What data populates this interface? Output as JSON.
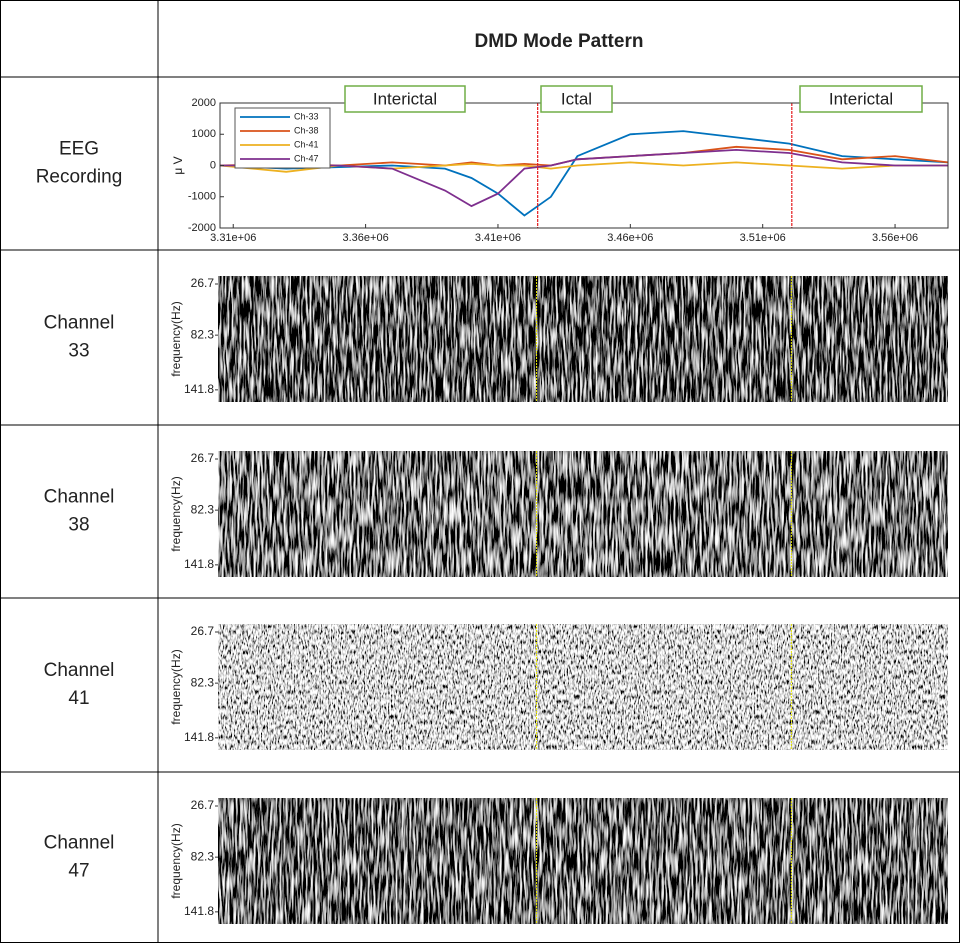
{
  "header": {
    "title": "DMD Mode Pattern"
  },
  "rows": [
    {
      "label_lines": [
        "EEG",
        "Recording"
      ]
    },
    {
      "label_lines": [
        "Channel",
        "33"
      ]
    },
    {
      "label_lines": [
        "Channel",
        "38"
      ]
    },
    {
      "label_lines": [
        "Channel",
        "41"
      ]
    },
    {
      "label_lines": [
        "Channel",
        "47"
      ]
    }
  ],
  "chart_data": [
    {
      "type": "line",
      "ylabel": "μ V",
      "annotations": [
        "Interictal",
        "Ictal",
        "Interictal"
      ],
      "xlim": [
        3305000,
        3580000
      ],
      "ylim": [
        -2000,
        2000
      ],
      "xticks": [
        {
          "value": 3310000,
          "label": "3.31e+06"
        },
        {
          "value": 3360000,
          "label": "3.36e+06"
        },
        {
          "value": 3410000,
          "label": "3.41e+06"
        },
        {
          "value": 3460000,
          "label": "3.46e+06"
        },
        {
          "value": 3510000,
          "label": "3.51e+06"
        },
        {
          "value": 3560000,
          "label": "3.56e+06"
        }
      ],
      "yticks": [
        -2000,
        -1000,
        0,
        1000,
        2000
      ],
      "event_x": [
        3425000,
        3521000
      ],
      "event_color": "#e41a1c",
      "x": [
        3305000,
        3330000,
        3350000,
        3370000,
        3390000,
        3400000,
        3410000,
        3420000,
        3430000,
        3440000,
        3460000,
        3480000,
        3500000,
        3520000,
        3540000,
        3560000,
        3580000
      ],
      "series": [
        {
          "name": "Ch-33",
          "color": "#0072bd",
          "values": [
            0,
            -100,
            -50,
            0,
            -100,
            -400,
            -900,
            -1600,
            -1000,
            300,
            1000,
            1100,
            900,
            700,
            300,
            200,
            100
          ]
        },
        {
          "name": "Ch-38",
          "color": "#d95319",
          "values": [
            0,
            50,
            0,
            100,
            0,
            100,
            0,
            50,
            0,
            200,
            300,
            400,
            600,
            500,
            200,
            300,
            100
          ]
        },
        {
          "name": "Ch-41",
          "color": "#edb120",
          "values": [
            0,
            -200,
            0,
            -100,
            0,
            50,
            0,
            0,
            -100,
            0,
            100,
            0,
            100,
            0,
            -100,
            0,
            0
          ]
        },
        {
          "name": "Ch-47",
          "color": "#7e2f8e",
          "values": [
            0,
            0,
            0,
            -100,
            -800,
            -1300,
            -900,
            -100,
            0,
            200,
            300,
            400,
            500,
            400,
            100,
            0,
            0
          ]
        }
      ]
    },
    {
      "type": "spectrogram",
      "ylabel": "frequency(Hz)",
      "xlim": [
        3305000,
        3580000
      ],
      "ylim": [
        18,
        155
      ],
      "yticks": [
        26.7,
        82.3,
        141.8
      ],
      "event_x": [
        3425000,
        3521000
      ],
      "event_color": "#e8e800"
    },
    {
      "type": "spectrogram",
      "ylabel": "frequency(Hz)",
      "xlim": [
        3305000,
        3580000
      ],
      "ylim": [
        18,
        155
      ],
      "yticks": [
        26.7,
        82.3,
        141.8
      ],
      "event_x": [
        3425000,
        3521000
      ],
      "event_color": "#e8e800"
    },
    {
      "type": "spectrogram",
      "ylabel": "frequency(Hz)",
      "xlim": [
        3305000,
        3580000
      ],
      "ylim": [
        18,
        155
      ],
      "yticks": [
        26.7,
        82.3,
        141.8
      ],
      "event_x": [
        3425000,
        3521000
      ],
      "event_color": "#e8e800"
    },
    {
      "type": "spectrogram",
      "ylabel": "frequency(Hz)",
      "xlim": [
        3305000,
        3580000
      ],
      "ylim": [
        18,
        155
      ],
      "yticks": [
        26.7,
        82.3,
        141.8
      ],
      "event_x": [
        3425000,
        3521000
      ],
      "event_color": "#e8e800"
    }
  ]
}
